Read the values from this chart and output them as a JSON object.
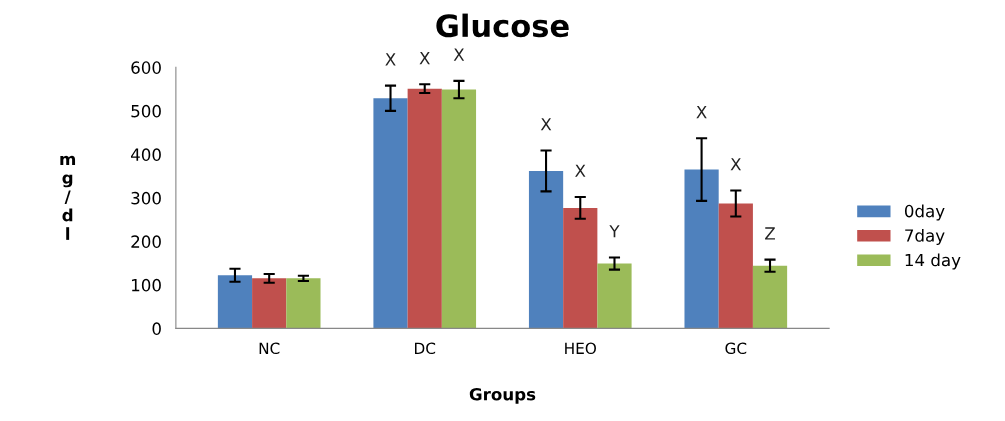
{
  "chart_data": {
    "type": "bar",
    "title": "Glucose",
    "xlabel": "Groups",
    "ylabel": "mg/dl",
    "categories": [
      "NC",
      "DC",
      "HEO",
      "GC"
    ],
    "series": [
      {
        "name": "0day",
        "color": "#4f81bd",
        "values": [
          122,
          529,
          362,
          365
        ],
        "errors": [
          15,
          29,
          47,
          72
        ],
        "value_labels": [
          null,
          "X",
          "X",
          "X"
        ]
      },
      {
        "name": "7day",
        "color": "#c0504d",
        "values": [
          115,
          551,
          277,
          287
        ],
        "errors": [
          10,
          10,
          25,
          30
        ],
        "value_labels": [
          null,
          "X",
          "X",
          "X"
        ]
      },
      {
        "name": "14 day",
        "color": "#9bbb59",
        "values": [
          115,
          549,
          149,
          144
        ],
        "errors": [
          6,
          20,
          14,
          14
        ],
        "value_labels": [
          null,
          "X",
          "Y",
          "Z"
        ]
      }
    ],
    "ylim": [
      0,
      600
    ],
    "yticks": [
      0,
      100,
      200,
      300,
      400,
      500,
      600
    ],
    "grid": false,
    "legend": "right"
  }
}
